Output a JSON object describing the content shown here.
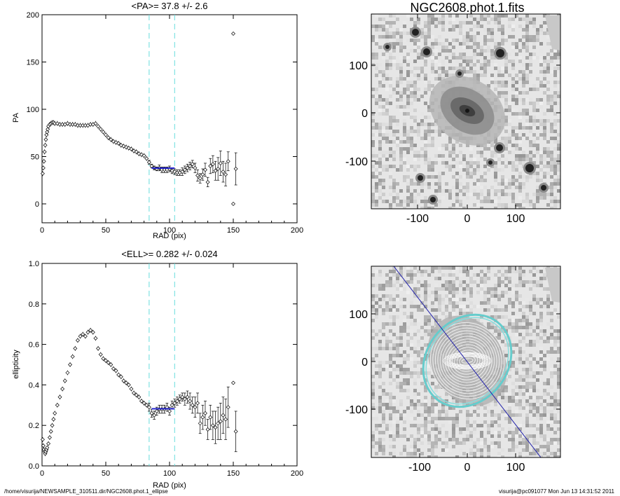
{
  "footer": {
    "left": "/home/visurija/NEWSAMPLE_310511.dir/NGC2608.phot.1_ellipse",
    "right": "visurija@pc091077  Mon Jun 13 14:31:52 2011"
  },
  "images": {
    "top_title": "NGC2608.phot.1.fits",
    "x_ticks": [
      "-100",
      "0",
      "100"
    ],
    "y_ticks": [
      "100",
      "0",
      "-100"
    ]
  },
  "chart_data": [
    {
      "type": "scatter",
      "title": "<PA>=  37.8 +/-   2.6",
      "xlabel": "RAD (pix)",
      "ylabel": "PA",
      "xlim": [
        0,
        200
      ],
      "ylim": [
        -20,
        200
      ],
      "x_ticks": [
        0,
        50,
        100,
        150,
        200
      ],
      "y_ticks": [
        0,
        50,
        100,
        150,
        200
      ],
      "x_tick_labels": [
        "0",
        "50",
        "100",
        "150",
        "200"
      ],
      "y_tick_labels": [
        "0",
        "50",
        "100",
        "150",
        "200"
      ],
      "vlines": [
        84,
        104
      ],
      "mean_line": {
        "x": [
          86,
          104
        ],
        "y": 37.8
      },
      "series_profile": [
        [
          0.5,
          32
        ],
        [
          1,
          38
        ],
        [
          1.5,
          45
        ],
        [
          2,
          55
        ],
        [
          2.5,
          62
        ],
        [
          3,
          68
        ],
        [
          3.5,
          73
        ],
        [
          4,
          76
        ],
        [
          4.5,
          79
        ],
        [
          5,
          82
        ],
        [
          6,
          84
        ],
        [
          7,
          85
        ],
        [
          8,
          86
        ],
        [
          9,
          86
        ],
        [
          10,
          85
        ],
        [
          12,
          85
        ],
        [
          14,
          84
        ],
        [
          16,
          84
        ],
        [
          18,
          84
        ],
        [
          20,
          85
        ],
        [
          22,
          84
        ],
        [
          24,
          84
        ],
        [
          26,
          84
        ],
        [
          28,
          83
        ],
        [
          30,
          83
        ],
        [
          32,
          83
        ],
        [
          34,
          83
        ],
        [
          36,
          83
        ],
        [
          38,
          84
        ],
        [
          40,
          84
        ],
        [
          42,
          85
        ],
        [
          44,
          82
        ],
        [
          46,
          79
        ],
        [
          48,
          76
        ],
        [
          50,
          73
        ],
        [
          52,
          70
        ],
        [
          54,
          68
        ],
        [
          56,
          66
        ],
        [
          58,
          65
        ],
        [
          60,
          64
        ],
        [
          62,
          62
        ],
        [
          64,
          61
        ],
        [
          66,
          60
        ],
        [
          68,
          59
        ],
        [
          70,
          58
        ],
        [
          72,
          56
        ],
        [
          74,
          55
        ],
        [
          76,
          53
        ],
        [
          78,
          52
        ],
        [
          80,
          51
        ],
        [
          82,
          48
        ]
      ],
      "series_sparse": [
        {
          "x": 84,
          "y": 44,
          "e": 2
        },
        {
          "x": 86,
          "y": 40,
          "e": 2
        },
        {
          "x": 88,
          "y": 38,
          "e": 2
        },
        {
          "x": 90,
          "y": 37,
          "e": 2
        },
        {
          "x": 92,
          "y": 38,
          "e": 3
        },
        {
          "x": 94,
          "y": 36,
          "e": 3
        },
        {
          "x": 96,
          "y": 36,
          "e": 3
        },
        {
          "x": 98,
          "y": 36,
          "e": 3
        },
        {
          "x": 100,
          "y": 37,
          "e": 3
        },
        {
          "x": 102,
          "y": 35,
          "e": 3
        },
        {
          "x": 104,
          "y": 34,
          "e": 3
        },
        {
          "x": 106,
          "y": 33,
          "e": 3
        },
        {
          "x": 108,
          "y": 33,
          "e": 3
        },
        {
          "x": 110,
          "y": 34,
          "e": 4
        },
        {
          "x": 112,
          "y": 36,
          "e": 4
        },
        {
          "x": 114,
          "y": 38,
          "e": 4
        },
        {
          "x": 116,
          "y": 40,
          "e": 4
        },
        {
          "x": 118,
          "y": 42,
          "e": 4
        },
        {
          "x": 120,
          "y": 38,
          "e": 5
        },
        {
          "x": 122,
          "y": 30,
          "e": 6
        },
        {
          "x": 124,
          "y": 27,
          "e": 5
        },
        {
          "x": 126,
          "y": 31,
          "e": 6
        },
        {
          "x": 128,
          "y": 36,
          "e": 7
        },
        {
          "x": 130,
          "y": 23,
          "e": 5
        },
        {
          "x": 132,
          "y": 40,
          "e": 8
        },
        {
          "x": 134,
          "y": 42,
          "e": 9
        },
        {
          "x": 136,
          "y": 35,
          "e": 10
        },
        {
          "x": 138,
          "y": 37,
          "e": 12
        },
        {
          "x": 140,
          "y": 43,
          "e": 13
        },
        {
          "x": 142,
          "y": 34,
          "e": 11
        },
        {
          "x": 144,
          "y": 31,
          "e": 12
        },
        {
          "x": 146,
          "y": 45,
          "e": 10
        },
        {
          "x": 150,
          "y": 180,
          "e": 0
        },
        {
          "x": 150,
          "y": 0,
          "e": 0
        },
        {
          "x": 152,
          "y": 37,
          "e": 17
        }
      ]
    },
    {
      "type": "scatter",
      "title": "<ELL>= 0.282 +/-  0.024",
      "xlabel": "RAD (pix)",
      "ylabel": "ellipticity",
      "xlim": [
        0,
        200
      ],
      "ylim": [
        0,
        1
      ],
      "x_ticks": [
        0,
        50,
        100,
        150,
        200
      ],
      "y_ticks": [
        0,
        0.2,
        0.4,
        0.6,
        0.8,
        1.0
      ],
      "x_tick_labels": [
        "0",
        "50",
        "100",
        "150",
        "200"
      ],
      "y_tick_labels": [
        "0.0",
        "0.2",
        "0.4",
        "0.6",
        "0.8",
        "1.0"
      ],
      "vlines": [
        84,
        104
      ],
      "mean_line": {
        "x": [
          86,
          104
        ],
        "y": 0.282
      },
      "series_profile": [
        [
          0.5,
          0.13
        ],
        [
          1,
          0.1
        ],
        [
          1.5,
          0.08
        ],
        [
          2,
          0.07
        ],
        [
          2.5,
          0.06
        ],
        [
          3,
          0.07
        ],
        [
          3.5,
          0.08
        ],
        [
          4,
          0.09
        ],
        [
          5,
          0.11
        ],
        [
          6,
          0.14
        ],
        [
          7,
          0.17
        ],
        [
          8,
          0.2
        ],
        [
          9,
          0.23
        ],
        [
          10,
          0.26
        ],
        [
          12,
          0.3
        ],
        [
          14,
          0.34
        ],
        [
          16,
          0.38
        ],
        [
          18,
          0.42
        ],
        [
          20,
          0.46
        ],
        [
          22,
          0.5
        ],
        [
          24,
          0.54
        ],
        [
          26,
          0.58
        ],
        [
          28,
          0.62
        ],
        [
          30,
          0.64
        ],
        [
          32,
          0.65
        ],
        [
          34,
          0.64
        ],
        [
          36,
          0.66
        ],
        [
          38,
          0.67
        ],
        [
          40,
          0.66
        ],
        [
          42,
          0.63
        ],
        [
          44,
          0.58
        ],
        [
          46,
          0.55
        ],
        [
          48,
          0.53
        ],
        [
          50,
          0.52
        ],
        [
          52,
          0.51
        ],
        [
          54,
          0.5
        ],
        [
          56,
          0.48
        ],
        [
          58,
          0.47
        ],
        [
          60,
          0.45
        ],
        [
          62,
          0.44
        ],
        [
          64,
          0.42
        ],
        [
          66,
          0.41
        ],
        [
          68,
          0.4
        ],
        [
          70,
          0.38
        ],
        [
          72,
          0.36
        ],
        [
          74,
          0.35
        ],
        [
          76,
          0.34
        ],
        [
          78,
          0.32
        ],
        [
          80,
          0.31
        ],
        [
          82,
          0.3
        ]
      ],
      "series_sparse": [
        {
          "x": 84,
          "y": 0.29,
          "e": 0.02
        },
        {
          "x": 86,
          "y": 0.26,
          "e": 0.02
        },
        {
          "x": 88,
          "y": 0.25,
          "e": 0.02
        },
        {
          "x": 90,
          "y": 0.27,
          "e": 0.02
        },
        {
          "x": 92,
          "y": 0.28,
          "e": 0.02
        },
        {
          "x": 94,
          "y": 0.28,
          "e": 0.02
        },
        {
          "x": 96,
          "y": 0.28,
          "e": 0.02
        },
        {
          "x": 98,
          "y": 0.29,
          "e": 0.02
        },
        {
          "x": 100,
          "y": 0.27,
          "e": 0.02
        },
        {
          "x": 102,
          "y": 0.3,
          "e": 0.02
        },
        {
          "x": 104,
          "y": 0.31,
          "e": 0.02
        },
        {
          "x": 106,
          "y": 0.32,
          "e": 0.02
        },
        {
          "x": 108,
          "y": 0.33,
          "e": 0.02
        },
        {
          "x": 110,
          "y": 0.34,
          "e": 0.02
        },
        {
          "x": 112,
          "y": 0.33,
          "e": 0.03
        },
        {
          "x": 114,
          "y": 0.34,
          "e": 0.03
        },
        {
          "x": 116,
          "y": 0.32,
          "e": 0.04
        },
        {
          "x": 118,
          "y": 0.3,
          "e": 0.04
        },
        {
          "x": 120,
          "y": 0.29,
          "e": 0.05
        },
        {
          "x": 122,
          "y": 0.31,
          "e": 0.05
        },
        {
          "x": 124,
          "y": 0.21,
          "e": 0.05
        },
        {
          "x": 126,
          "y": 0.24,
          "e": 0.06
        },
        {
          "x": 128,
          "y": 0.26,
          "e": 0.06
        },
        {
          "x": 130,
          "y": 0.18,
          "e": 0.05
        },
        {
          "x": 132,
          "y": 0.24,
          "e": 0.06
        },
        {
          "x": 134,
          "y": 0.2,
          "e": 0.07
        },
        {
          "x": 136,
          "y": 0.19,
          "e": 0.08
        },
        {
          "x": 138,
          "y": 0.21,
          "e": 0.08
        },
        {
          "x": 140,
          "y": 0.22,
          "e": 0.09
        },
        {
          "x": 142,
          "y": 0.25,
          "e": 0.09
        },
        {
          "x": 144,
          "y": 0.23,
          "e": 0.1
        },
        {
          "x": 146,
          "y": 0.29,
          "e": 0.1
        },
        {
          "x": 150,
          "y": 0.41,
          "e": 0
        },
        {
          "x": 152,
          "y": 0.17,
          "e": 0.1
        }
      ]
    }
  ]
}
